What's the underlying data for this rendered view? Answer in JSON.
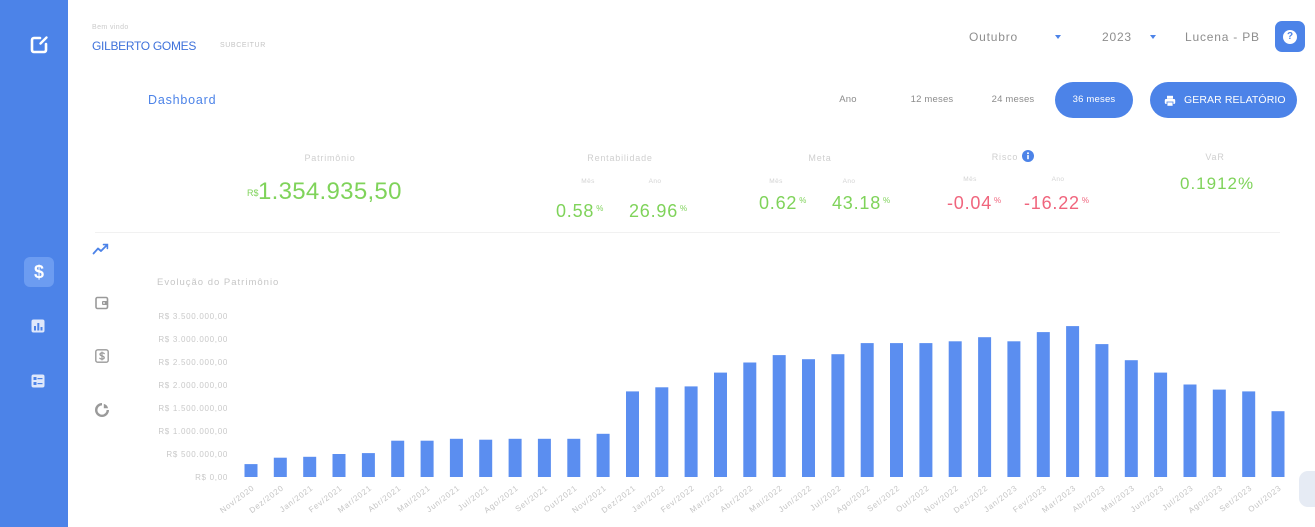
{
  "colors": {
    "accent": "#4c83e8",
    "bar": "#5b8ef0",
    "positive": "#7fd35a",
    "negative": "#f0657d",
    "muted_text": "#c8c8c8"
  },
  "sidebar": {
    "logo": {
      "icon": "edit-square-icon"
    },
    "items": [
      {
        "icon": "dollar-icon",
        "glyph": "$",
        "active": true
      },
      {
        "icon": "bar-chart-icon",
        "active": false
      },
      {
        "icon": "form-list-icon",
        "active": false
      }
    ]
  },
  "header": {
    "welcome": "Bem vindo",
    "user_name": "GILBERTO GOMES",
    "user_org": "SUBCEITUR",
    "month_select": {
      "value": "Outubro",
      "icon": "caret-down-icon"
    },
    "year_select": {
      "value": "2023",
      "icon": "caret-down-icon"
    },
    "location": "Lucena - PB",
    "help": {
      "icon": "help-icon",
      "glyph": "?"
    }
  },
  "toolbar": {
    "page_title": "Dashboard",
    "periods": [
      {
        "label": "Ano",
        "active": false
      },
      {
        "label": "12 meses",
        "active": false
      },
      {
        "label": "24 meses",
        "active": false
      },
      {
        "label": "36 meses",
        "active": true
      }
    ],
    "report_button": {
      "label": "GERAR RELATÓRIO",
      "icon": "printer-icon"
    }
  },
  "stats": {
    "patrimonio": {
      "label": "Patrimônio",
      "currency": "R$",
      "value": "1.354.935,50"
    },
    "rentabilidade": {
      "label": "Rentabilidade",
      "month_label": "Mês",
      "month_value": "0.58",
      "year_label": "Ano",
      "year_value": "26.96",
      "unit": "%"
    },
    "meta": {
      "label": "Meta",
      "month_label": "Mês",
      "month_value": "0.62",
      "year_label": "Ano",
      "year_value": "43.18",
      "unit": "%"
    },
    "risco": {
      "label": "Risco",
      "info_icon": "info-icon",
      "month_label": "Mês",
      "month_value": "-0.04",
      "year_label": "Ano",
      "year_value": "-16.22",
      "unit": "%"
    },
    "var": {
      "label": "VaR",
      "value": "0.1912%"
    }
  },
  "side_tabs": [
    {
      "icon": "trend-line-icon",
      "active": true
    },
    {
      "icon": "wallet-icon",
      "active": false
    },
    {
      "icon": "dollar-box-icon",
      "active": false
    },
    {
      "icon": "donut-chart-icon",
      "active": false
    }
  ],
  "chart_data": {
    "type": "bar",
    "title": "Evolução do Patrimônio",
    "categories": [
      "Nov/2020",
      "Dez/2020",
      "Jan/2021",
      "Fev/2021",
      "Mar/2021",
      "Abr/2021",
      "Mai/2021",
      "Jun/2021",
      "Jul/2021",
      "Ago/2021",
      "Set/2021",
      "Out/2021",
      "Nov/2021",
      "Dez/2021",
      "Jan/2022",
      "Fev/2022",
      "Mar/2022",
      "Abr/2022",
      "Mai/2022",
      "Jun/2022",
      "Jul/2022",
      "Ago/2022",
      "Set/2022",
      "Out/2022",
      "Nov/2022",
      "Dez/2022",
      "Jan/2023",
      "Fev/2023",
      "Mar/2023",
      "Abr/2023",
      "Mai/2023",
      "Jun/2023",
      "Jul/2023",
      "Ago/2023",
      "Set/2023",
      "Out/2023"
    ],
    "values": [
      280000,
      420000,
      440000,
      500000,
      520000,
      790000,
      790000,
      830000,
      810000,
      830000,
      830000,
      830000,
      940000,
      1860000,
      1950000,
      1970000,
      2270000,
      2490000,
      2650000,
      2560000,
      2670000,
      2910000,
      2910000,
      2910000,
      2950000,
      3040000,
      2950000,
      3150000,
      3280000,
      2890000,
      2540000,
      2270000,
      2010000,
      1900000,
      1860000,
      1430000
    ],
    "ylim": [
      0,
      3500000
    ],
    "yticks": [
      0,
      500000,
      1000000,
      1500000,
      2000000,
      2500000,
      3000000,
      3500000
    ],
    "ytick_labels": [
      "R$ 0,00",
      "R$ 500.000,00",
      "R$ 1.000.000,00",
      "R$ 1.500.000,00",
      "R$ 2.000.000,00",
      "R$ 2.500.000,00",
      "R$ 3.000.000,00",
      "R$ 3.500.000,00"
    ],
    "grid": false,
    "legend": "none",
    "bar_color": "#5b8ef0"
  }
}
